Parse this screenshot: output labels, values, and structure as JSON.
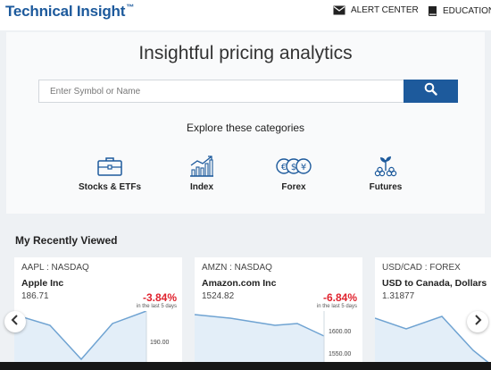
{
  "header": {
    "brand": "Technical Insight",
    "trademark": "™",
    "nav": [
      {
        "label": "ALERT CENTER",
        "icon": "envelope-icon"
      },
      {
        "label": "EDUCATION",
        "icon": "book-icon"
      }
    ]
  },
  "hero": {
    "title": "Insightful pricing analytics",
    "search_placeholder": "Enter Symbol or Name",
    "categories_heading": "Explore these categories",
    "categories": [
      {
        "label": "Stocks & ETFs",
        "icon": "briefcase-icon"
      },
      {
        "label": "Index",
        "icon": "bar-chart-icon"
      },
      {
        "label": "Forex",
        "icon": "currency-exchange-icon"
      },
      {
        "label": "Futures",
        "icon": "plant-growth-icon"
      }
    ]
  },
  "recent": {
    "title": "My Recently Viewed",
    "cards": [
      {
        "symbol": "AAPL : NASDAQ",
        "name": "Apple Inc",
        "price": "186.71",
        "change": "-3.84%",
        "note": "in the last 5 days",
        "axis": [
          "190.00"
        ]
      },
      {
        "symbol": "AMZN : NASDAQ",
        "name": "Amazon.com Inc",
        "price": "1524.82",
        "change": "-6.84%",
        "note": "in the last 5 days",
        "axis": [
          "1600.00",
          "1550.00"
        ]
      },
      {
        "symbol": "USD/CAD : FOREX",
        "name": "USD to Canada, Dollars",
        "price": "1.31877",
        "change": "",
        "note": "",
        "axis": []
      }
    ]
  },
  "colors": {
    "brand": "#1d5a9c",
    "negative": "#e0232e",
    "chart_fill": "#e3eef8",
    "chart_line": "#6fa3d2"
  }
}
